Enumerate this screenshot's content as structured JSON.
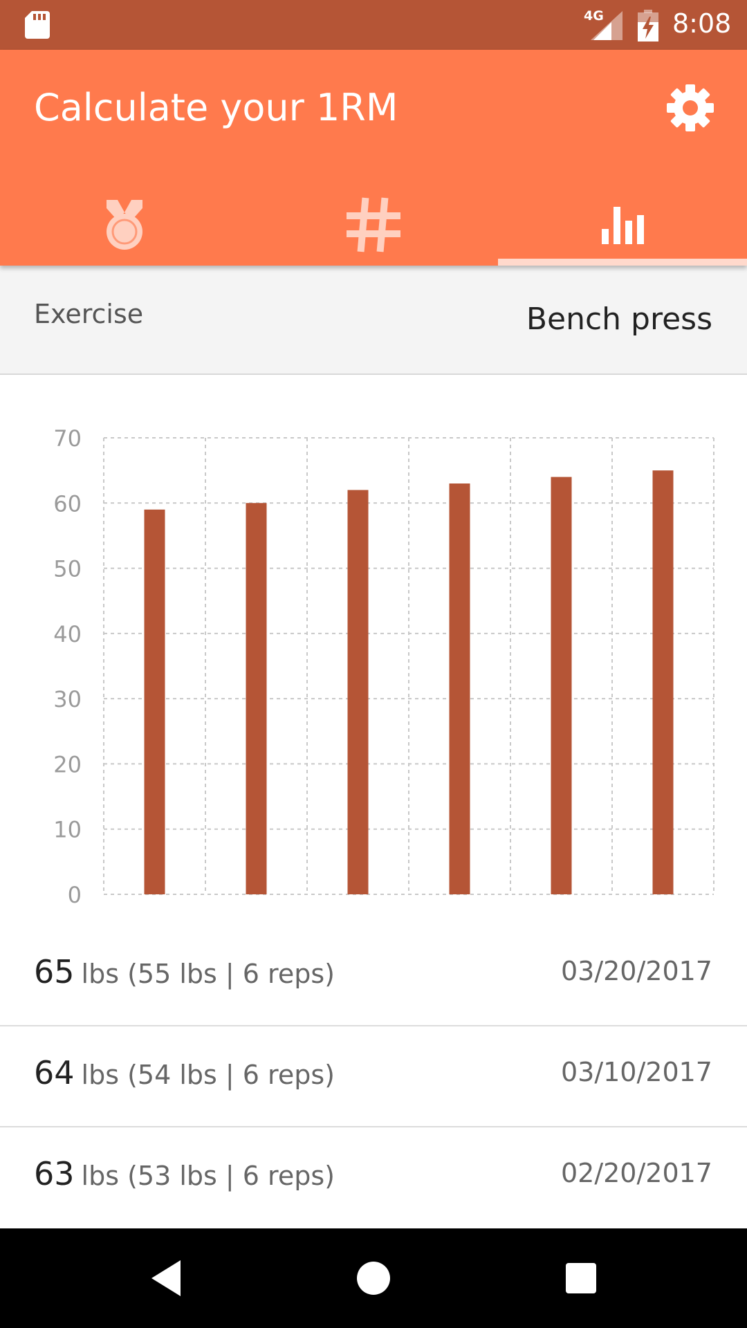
{
  "status_bar": {
    "network_label": "4G",
    "time": "8:08"
  },
  "app_bar": {
    "title": "Calculate your 1RM",
    "settings_icon": "gear-icon",
    "tabs": [
      {
        "icon": "medal-icon",
        "selected": false
      },
      {
        "icon": "hash-icon",
        "selected": false
      },
      {
        "icon": "bar-chart-icon",
        "selected": true
      }
    ]
  },
  "exercise": {
    "label": "Exercise",
    "value": "Bench press"
  },
  "chart_data": {
    "type": "bar",
    "categories": [
      "",
      "",
      "",
      "",
      "",
      ""
    ],
    "values": [
      59,
      60,
      62,
      63,
      64,
      65
    ],
    "y_ticks": [
      "0",
      "10",
      "20",
      "30",
      "40",
      "50",
      "60",
      "70"
    ],
    "ylim": [
      0,
      70
    ],
    "grid": true,
    "bar_color": "#b55536"
  },
  "history": [
    {
      "one_rm": "65",
      "detail": "lbs (55 lbs | 6 reps)",
      "date": "03/20/2017"
    },
    {
      "one_rm": "64",
      "detail": "lbs (54 lbs | 6 reps)",
      "date": "03/10/2017"
    },
    {
      "one_rm": "63",
      "detail": "lbs (53 lbs | 6 reps)",
      "date": "02/20/2017"
    }
  ],
  "nav_bar": {
    "back": "back-icon",
    "home": "home-icon",
    "recents": "recents-icon"
  },
  "colors": {
    "status_bar": "#b55536",
    "primary": "#ff7a4d",
    "bar": "#b55536"
  }
}
